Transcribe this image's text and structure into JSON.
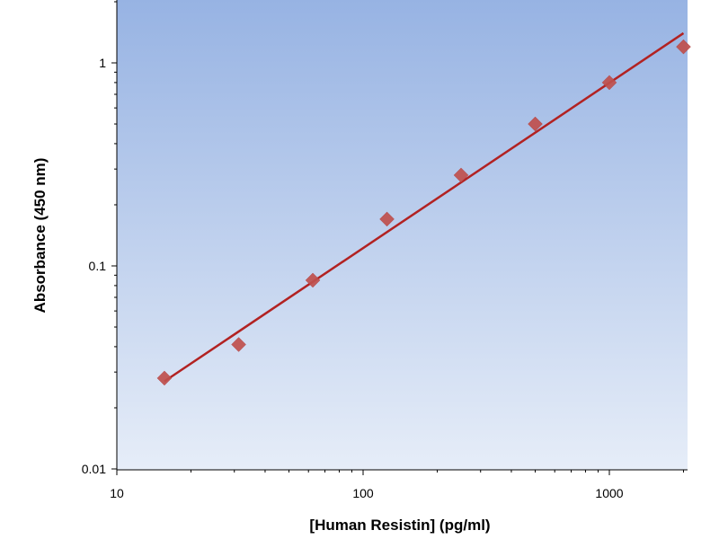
{
  "chart_data": {
    "type": "scatter",
    "title": "",
    "xlabel": "[Human Resistin] (pg/ml)",
    "ylabel": "Absorbance (450 nm)",
    "xscale": "log",
    "yscale": "log",
    "xlim": [
      10,
      2000
    ],
    "ylim": [
      0.01,
      2
    ],
    "grid": false,
    "legend": "none",
    "x_tick_labels": [
      "10",
      "100",
      "1000"
    ],
    "y_tick_labels": [
      "0.01",
      "0.1",
      "1"
    ],
    "series": [
      {
        "x": [
          15.6,
          31.25,
          62.5,
          125,
          250,
          500,
          1000,
          2000
        ],
        "y": [
          0.028,
          0.041,
          0.085,
          0.17,
          0.28,
          0.5,
          0.8,
          1.2
        ],
        "marker": "diamond",
        "color": "#c0504d"
      }
    ],
    "fit_line": {
      "x": [
        15.6,
        2000
      ],
      "y": [
        0.027,
        1.4
      ],
      "color": "#b22222"
    },
    "colors": {
      "plot_bg_top": "#97b3e3",
      "plot_bg_bottom": "#e6edf8",
      "marker": "#c0504d",
      "line": "#b22222"
    }
  }
}
